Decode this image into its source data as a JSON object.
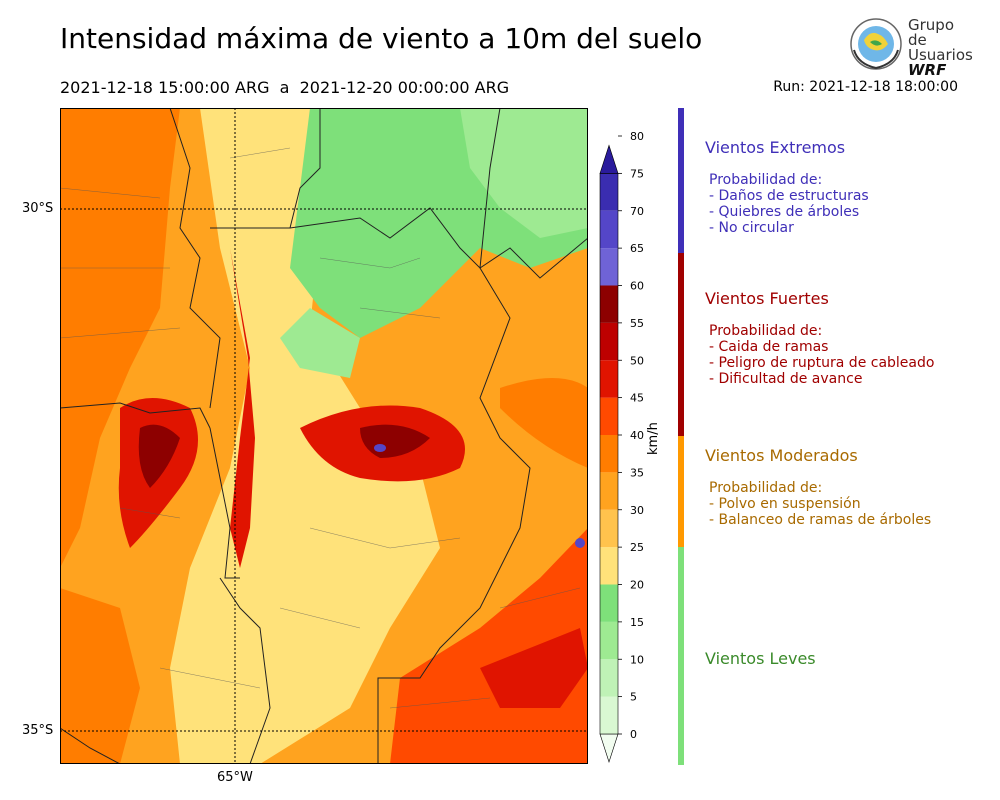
{
  "header": {
    "title": "Intensidad máxima de viento a 10m del suelo",
    "period": "2021-12-18 15:00:00 ARG  a  2021-12-20 00:00:00 ARG",
    "run": "Run: 2021-12-18 18:00:00"
  },
  "logo": {
    "line1": "Grupo de",
    "line2": "Usuarios",
    "line3": "WRF",
    "icon": "globe-seal-icon"
  },
  "map": {
    "lat_labels": [
      "30°S",
      "35°S"
    ],
    "lon_labels": [
      "65°W"
    ],
    "grid": "dotted"
  },
  "colorbar": {
    "unit": "km/h",
    "ticks": [
      "0",
      "5",
      "10",
      "15",
      "20",
      "25",
      "30",
      "35",
      "40",
      "45",
      "50",
      "55",
      "60",
      "65",
      "70",
      "75",
      "80"
    ],
    "colors": [
      "#f2fdf0",
      "#d9f8d2",
      "#bff2b6",
      "#9eea92",
      "#7ee07a",
      "#ffe27a",
      "#ffc34d",
      "#ffa31f",
      "#ff7d00",
      "#ff4a00",
      "#e01400",
      "#bd0000",
      "#8d0000",
      "#6f63d6",
      "#5446c8",
      "#3a2db0",
      "#2a1b9c"
    ]
  },
  "categories": [
    {
      "name": "Vientos Extremos",
      "color": "#3f2fb8",
      "desc": "Probabilidad de:\n- Daños de estructuras\n- Quiebres de árboles\n- No circular"
    },
    {
      "name": "Vientos Fuertes",
      "color": "#a00000",
      "desc": "Probabilidad de:\n- Caida de ramas\n- Peligro de ruptura de cableado\n- Dificultad de avance"
    },
    {
      "name": "Vientos Moderados",
      "color": "#a86a00",
      "desc": "Probabilidad de:\n- Polvo en suspensión\n- Balanceo de ramas de árboles"
    },
    {
      "name": "Vientos Leves",
      "color": "#3a8a2a",
      "desc": ""
    }
  ]
}
